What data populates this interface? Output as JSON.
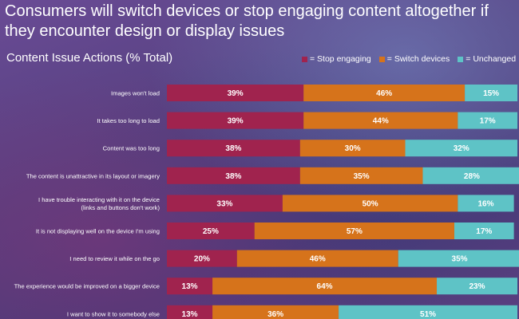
{
  "headline": "Consumers will switch devices or stop engaging content altogether if they encounter design or display issues",
  "colors": {
    "stop": "#a0234e",
    "switch": "#d6731b",
    "unchanged": "#5ec3c6"
  },
  "chart_data": {
    "type": "bar",
    "orientation": "horizontal",
    "stacked": true,
    "title": "Content Issue Actions (% Total)",
    "legend": [
      {
        "key": "stop",
        "label": "= Stop engaging"
      },
      {
        "key": "switch",
        "label": "= Switch devices"
      },
      {
        "key": "unchanged",
        "label": "= Unchanged"
      }
    ],
    "categories": [
      [
        "Images won't load"
      ],
      [
        "It takes too long to load"
      ],
      [
        "Content was too long"
      ],
      [
        "The content is unattractive in its layout or imagery"
      ],
      [
        "I have trouble interacting with it on the device",
        "(links and buttons don't work)"
      ],
      [
        "It is not displaying well on the device I'm using"
      ],
      [
        "I need to review it while on the go"
      ],
      [
        "The experience would be improved on a bigger device"
      ],
      [
        "I want to show it to somebody else"
      ]
    ],
    "series": [
      {
        "name": "Stop engaging",
        "key": "stop",
        "values": [
          39,
          39,
          38,
          38,
          33,
          25,
          20,
          13,
          13
        ]
      },
      {
        "name": "Switch devices",
        "key": "switch",
        "values": [
          46,
          44,
          30,
          35,
          50,
          57,
          46,
          64,
          36
        ]
      },
      {
        "name": "Unchanged",
        "key": "unchanged",
        "values": [
          15,
          17,
          32,
          28,
          16,
          17,
          35,
          23,
          51
        ]
      }
    ],
    "value_suffix": "%",
    "xlim": [
      0,
      100
    ]
  }
}
